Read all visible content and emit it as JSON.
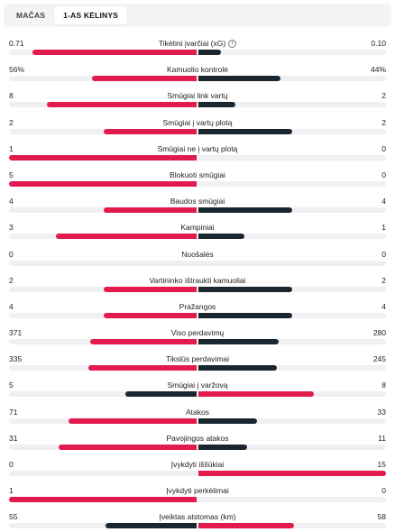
{
  "tabs": [
    {
      "label": "MAČAS",
      "active": false
    },
    {
      "label": "1-AS KĖLINYS",
      "active": true
    }
  ],
  "stats": [
    {
      "name": "Tikėtini įvarčiai (xG)",
      "home": "0.71",
      "away": "0.10",
      "home_num": 0.71,
      "away_num": 0.1,
      "info": "i"
    },
    {
      "name": "Kamuolio kontrolė",
      "home": "56%",
      "away": "44%",
      "home_num": 56,
      "away_num": 44
    },
    {
      "name": "Smūgiai link vartų",
      "home": "8",
      "away": "2",
      "home_num": 8,
      "away_num": 2
    },
    {
      "name": "Smūgiai į vartų plotą",
      "home": "2",
      "away": "2",
      "home_num": 2,
      "away_num": 2
    },
    {
      "name": "Smūgiai ne į vartų plotą",
      "home": "1",
      "away": "0",
      "home_num": 1,
      "away_num": 0
    },
    {
      "name": "Blokuoti smūgiai",
      "home": "5",
      "away": "0",
      "home_num": 5,
      "away_num": 0
    },
    {
      "name": "Baudos smūgiai",
      "home": "4",
      "away": "4",
      "home_num": 4,
      "away_num": 4
    },
    {
      "name": "Kampiniai",
      "home": "3",
      "away": "1",
      "home_num": 3,
      "away_num": 1
    },
    {
      "name": "Nuošalės",
      "home": "0",
      "away": "0",
      "home_num": 0,
      "away_num": 0
    },
    {
      "name": "Vartininko ištraukti kamuoliai",
      "home": "2",
      "away": "2",
      "home_num": 2,
      "away_num": 2
    },
    {
      "name": "Pražangos",
      "home": "4",
      "away": "4",
      "home_num": 4,
      "away_num": 4
    },
    {
      "name": "Viso perdavimų",
      "home": "371",
      "away": "280",
      "home_num": 371,
      "away_num": 280
    },
    {
      "name": "Tikslūs perdavimai",
      "home": "335",
      "away": "245",
      "home_num": 335,
      "away_num": 245
    },
    {
      "name": "Smūgiai į varžovą",
      "home": "5",
      "away": "8",
      "home_num": 5,
      "away_num": 8
    },
    {
      "name": "Atakos",
      "home": "71",
      "away": "33",
      "home_num": 71,
      "away_num": 33
    },
    {
      "name": "Pavojingos atakos",
      "home": "31",
      "away": "11",
      "home_num": 31,
      "away_num": 11
    },
    {
      "name": "Įvykdyti iššūkiai",
      "home": "0",
      "away": "15",
      "home_num": 0,
      "away_num": 15
    },
    {
      "name": "Įvykdyti perkėlimai",
      "home": "1",
      "away": "0",
      "home_num": 1,
      "away_num": 0
    },
    {
      "name": "Įveiktas atstomas (km)",
      "home": "55",
      "away": "58",
      "home_num": 55,
      "away_num": 58
    }
  ],
  "colors": {
    "leader": "#e21b4d",
    "other": "#1b2730",
    "track": "#f0f0f2"
  }
}
